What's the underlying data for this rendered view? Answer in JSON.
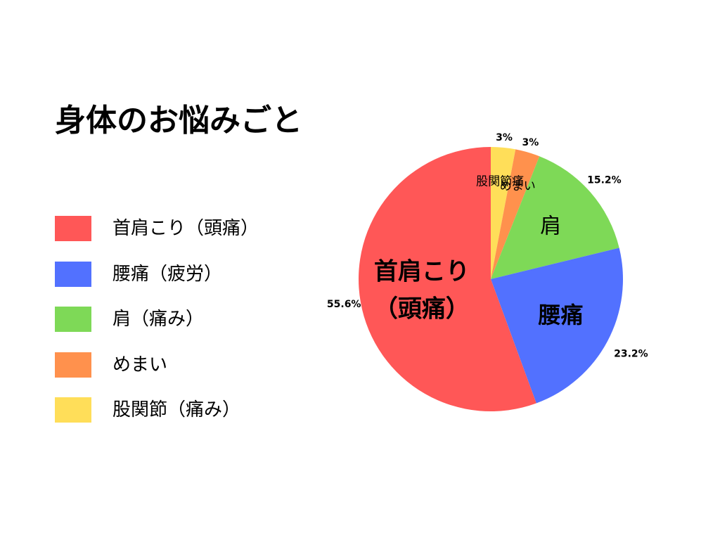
{
  "title": "身体のお悩みごと",
  "legend": [
    {
      "label": "首肩こり（頭痛）",
      "color": "#ff5757"
    },
    {
      "label": "腰痛（疲労）",
      "color": "#5271ff"
    },
    {
      "label": "肩（痛み）",
      "color": "#7ed957"
    },
    {
      "label": "めまい",
      "color": "#ff914d"
    },
    {
      "label": "股関節（痛み）",
      "color": "#ffde59"
    }
  ],
  "chart_data": {
    "type": "pie",
    "title": "身体のお悩みごと",
    "start": "12 o'clock",
    "direction": "clockwise",
    "slices": [
      {
        "name": "股関節（痛み）",
        "value": 3,
        "label": "3%",
        "inner_label": "股関節痛",
        "color": "#ffde59"
      },
      {
        "name": "めまい",
        "value": 3,
        "label": "3%",
        "inner_label": "めまい",
        "color": "#ff914d"
      },
      {
        "name": "肩（痛み）",
        "value": 15.2,
        "label": "15.2%",
        "inner_label": "肩",
        "color": "#7ed957"
      },
      {
        "name": "腰痛（疲労）",
        "value": 23.2,
        "label": "23.2%",
        "inner_label": "腰痛",
        "color": "#5271ff"
      },
      {
        "name": "首肩こり（頭痛）",
        "value": 55.6,
        "label": "55.6%",
        "inner_label": "首肩こり\n（頭痛）",
        "color": "#ff5757"
      }
    ]
  }
}
